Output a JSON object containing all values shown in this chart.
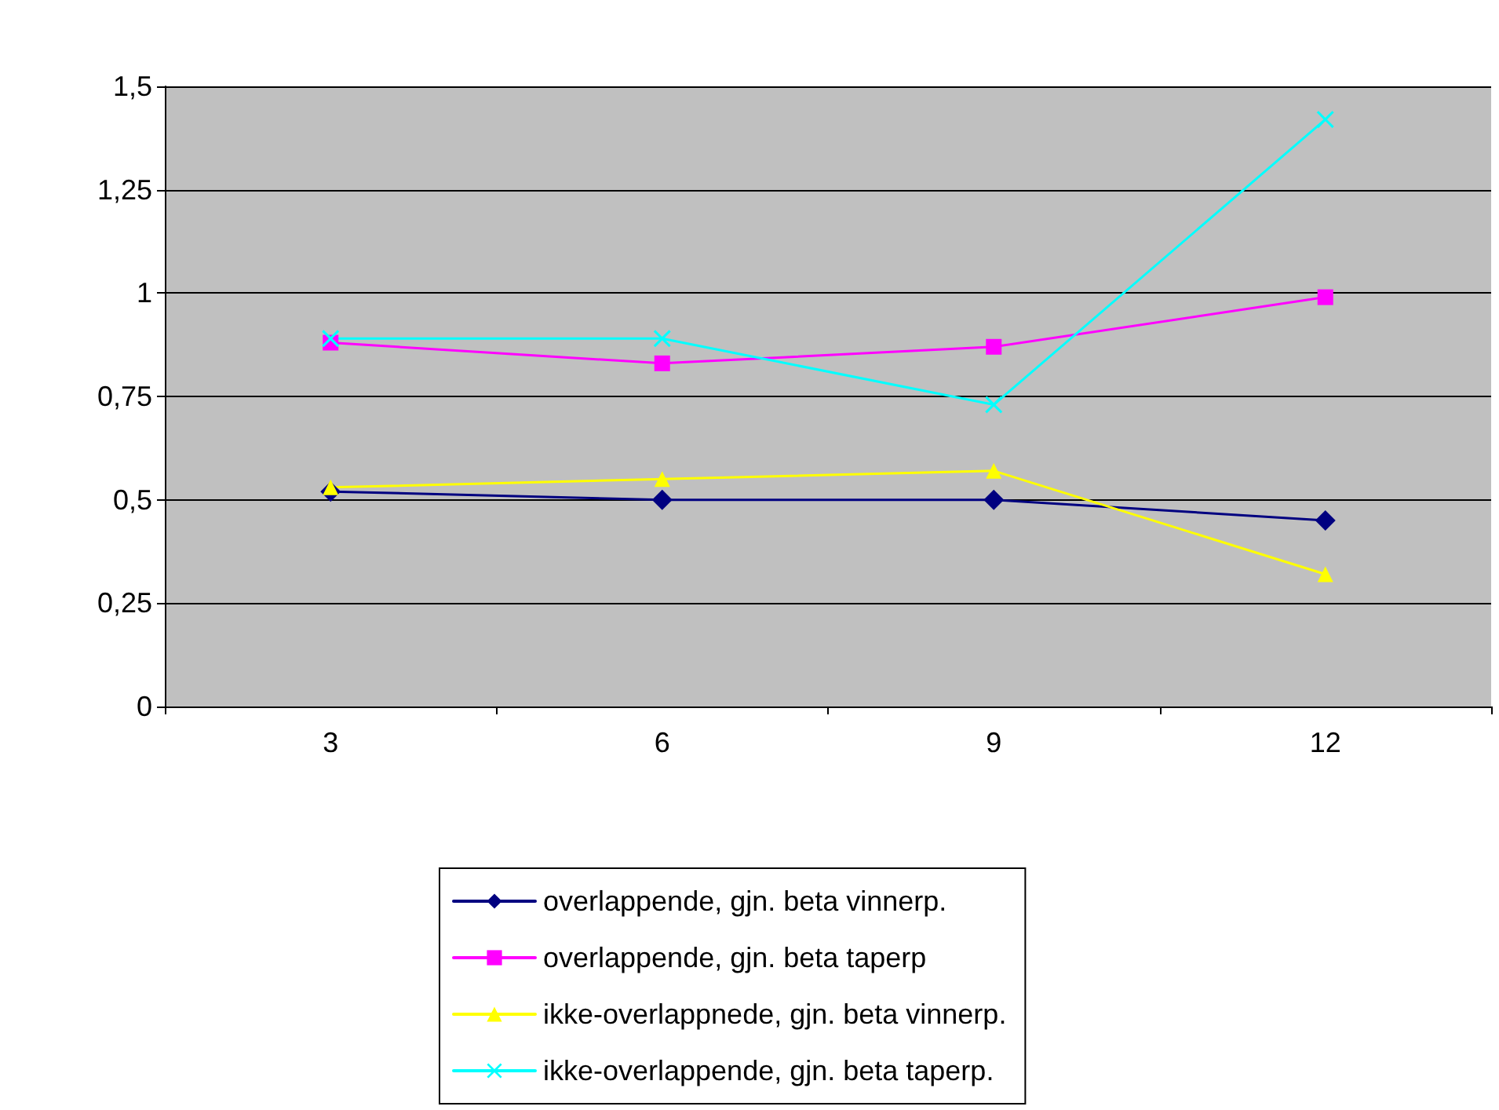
{
  "chart_data": {
    "type": "line",
    "categories": [
      "3",
      "6",
      "9",
      "12"
    ],
    "series": [
      {
        "name": "overlappende, gjn. beta vinnerp.",
        "color": "#000080",
        "marker": "diamond",
        "values": [
          0.52,
          0.5,
          0.5,
          0.45
        ]
      },
      {
        "name": "overlappende, gjn. beta taperp",
        "color": "#ff00ff",
        "marker": "square",
        "values": [
          0.88,
          0.83,
          0.87,
          0.99
        ]
      },
      {
        "name": "ikke-overlappnede, gjn. beta vinnerp.",
        "color": "#ffff00",
        "marker": "triangle",
        "values": [
          0.53,
          0.55,
          0.57,
          0.32
        ]
      },
      {
        "name": "ikke-overlappende, gjn. beta taperp.",
        "color": "#00ffff",
        "marker": "cross",
        "values": [
          0.89,
          0.89,
          0.73,
          1.42
        ]
      }
    ],
    "ylim": [
      0,
      1.5
    ],
    "yticks": [
      0,
      {
        "value": 0.25,
        "label": "0,25"
      },
      {
        "value": 0.5,
        "label": "0,5"
      },
      {
        "value": 0.75,
        "label": "0,75"
      },
      1,
      {
        "value": 1.25,
        "label": "1,25"
      },
      {
        "value": 1.5,
        "label": "1,5"
      }
    ],
    "grid": "y",
    "legend": "bottom",
    "line_style": "solid"
  }
}
